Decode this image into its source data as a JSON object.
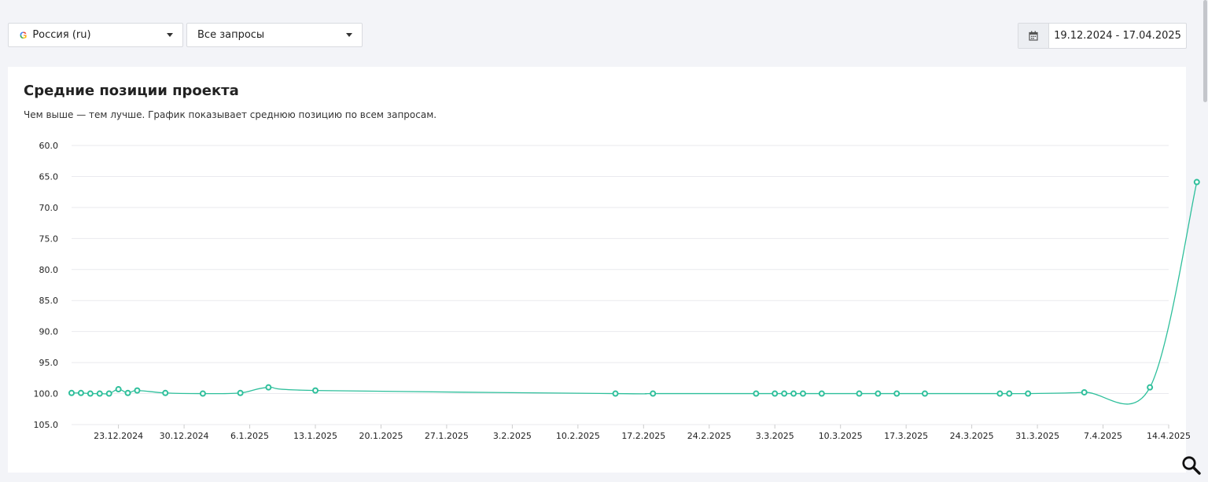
{
  "toolbar": {
    "region": {
      "label": "Россия (ru)",
      "icon": "google-icon"
    },
    "query_filter": {
      "label": "Все запросы"
    },
    "date_range": {
      "value": "19.12.2024 - 17.04.2025",
      "icon": "calendar-icon"
    }
  },
  "card": {
    "title": "Средние позиции проекта",
    "subtitle": "Чем выше — тем лучше. График показывает среднюю позицию по всем запросам."
  },
  "colors": {
    "series": "#2ebf9b",
    "grid": "#e9eaee",
    "accent_bg": "#f3f4f8"
  },
  "chart_data": {
    "type": "line",
    "title": "",
    "xlabel": "",
    "ylabel": "",
    "y_reversed": true,
    "ylim": [
      60,
      105
    ],
    "y_ticks": [
      60,
      65,
      70,
      75,
      80,
      85,
      90,
      95,
      100,
      105
    ],
    "y_tick_labels": [
      "60.0",
      "65.0",
      "70.0",
      "75.0",
      "80.0",
      "85.0",
      "90.0",
      "95.0",
      "100.0",
      "105.0"
    ],
    "xlim": [
      "2024-12-18",
      "2025-04-14"
    ],
    "x_ticks": [
      "2024-12-23",
      "2024-12-30",
      "2025-01-06",
      "2025-01-13",
      "2025-01-20",
      "2025-01-27",
      "2025-02-03",
      "2025-02-10",
      "2025-02-17",
      "2025-02-24",
      "2025-03-03",
      "2025-03-10",
      "2025-03-17",
      "2025-03-24",
      "2025-03-31",
      "2025-04-07",
      "2025-04-14"
    ],
    "x_tick_labels": [
      "23.12.2024",
      "30.12.2024",
      "6.1.2025",
      "13.1.2025",
      "20.1.2025",
      "27.1.2025",
      "3.2.2025",
      "10.2.2025",
      "17.2.2025",
      "24.2.2025",
      "3.3.2025",
      "10.3.2025",
      "17.3.2025",
      "24.3.2025",
      "31.3.2025",
      "7.4.2025",
      "14.4.2025"
    ],
    "grid": true,
    "legend": "none",
    "series": [
      {
        "points": [
          {
            "x": "2024-12-18",
            "y": 99.9
          },
          {
            "x": "2024-12-19",
            "y": 99.9
          },
          {
            "x": "2024-12-20",
            "y": 100.0
          },
          {
            "x": "2024-12-21",
            "y": 100.0
          },
          {
            "x": "2024-12-22",
            "y": 100.0
          },
          {
            "x": "2024-12-23",
            "y": 99.3
          },
          {
            "x": "2024-12-24",
            "y": 99.9
          },
          {
            "x": "2024-12-25",
            "y": 99.5
          },
          {
            "x": "2024-12-28",
            "y": 99.9
          },
          {
            "x": "2025-01-01",
            "y": 100.0
          },
          {
            "x": "2025-01-05",
            "y": 99.9
          },
          {
            "x": "2025-01-08",
            "y": 99.0
          },
          {
            "x": "2025-01-13",
            "y": 99.5
          },
          {
            "x": "2025-02-14",
            "y": 100.0
          },
          {
            "x": "2025-02-18",
            "y": 100.0
          },
          {
            "x": "2025-03-01",
            "y": 100.0
          },
          {
            "x": "2025-03-03",
            "y": 100.0
          },
          {
            "x": "2025-03-04",
            "y": 100.0
          },
          {
            "x": "2025-03-05",
            "y": 100.0
          },
          {
            "x": "2025-03-06",
            "y": 100.0
          },
          {
            "x": "2025-03-08",
            "y": 100.0
          },
          {
            "x": "2025-03-12",
            "y": 100.0
          },
          {
            "x": "2025-03-14",
            "y": 100.0
          },
          {
            "x": "2025-03-16",
            "y": 100.0
          },
          {
            "x": "2025-03-19",
            "y": 100.0
          },
          {
            "x": "2025-03-27",
            "y": 100.0
          },
          {
            "x": "2025-03-28",
            "y": 100.0
          },
          {
            "x": "2025-03-30",
            "y": 100.0
          },
          {
            "x": "2025-04-05",
            "y": 99.8
          },
          {
            "x": "2025-04-12",
            "y": 99.0
          },
          {
            "x": "2025-04-17",
            "y": 65.9
          }
        ]
      }
    ]
  }
}
